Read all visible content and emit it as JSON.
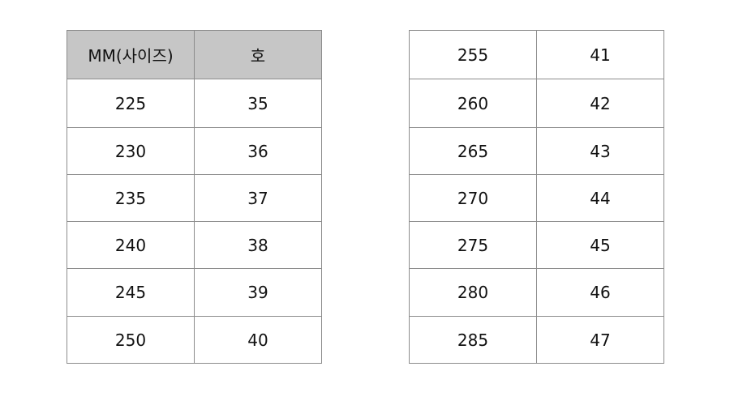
{
  "left_table": {
    "header": [
      "MM(사이즈)",
      "호"
    ],
    "rows": [
      [
        "225",
        "35"
      ],
      [
        "230",
        "36"
      ],
      [
        "235",
        "37"
      ],
      [
        "240",
        "38"
      ],
      [
        "245",
        "39"
      ],
      [
        "250",
        "40"
      ]
    ]
  },
  "right_table": {
    "rows": [
      [
        "255",
        "41"
      ],
      [
        "260",
        "42"
      ],
      [
        "265",
        "43"
      ],
      [
        "270",
        "44"
      ],
      [
        "275",
        "45"
      ],
      [
        "280",
        "46"
      ],
      [
        "285",
        "47"
      ]
    ]
  },
  "colors": {
    "header_bg": "#c6c6c6",
    "border": "#8c8c8c"
  }
}
